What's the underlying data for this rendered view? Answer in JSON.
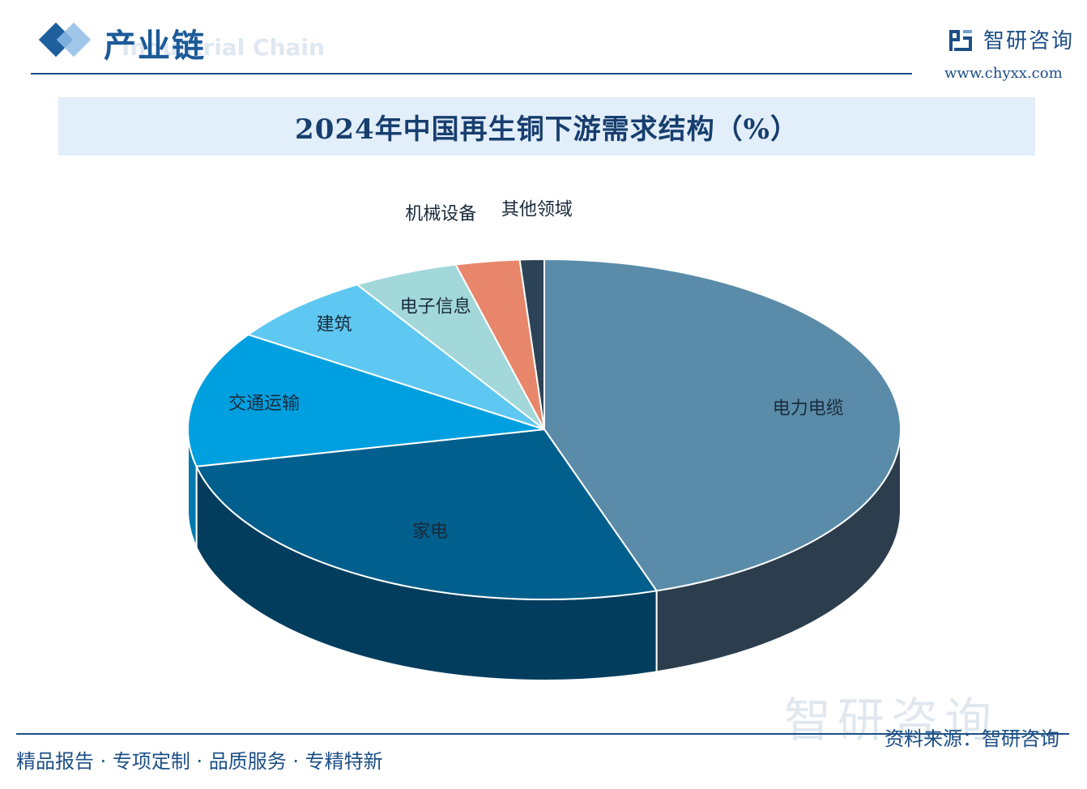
{
  "header": {
    "section_title": "产业链",
    "section_subtitle": "Industrial Chain",
    "brand_name": "智研咨询",
    "brand_url": "www.chyxx.com"
  },
  "chart_data": {
    "type": "pie",
    "title": "2024年中国再生铜下游需求结构（%）",
    "categories": [
      "电力电缆",
      "家电",
      "交通运输",
      "建筑",
      "电子信息",
      "机械设备",
      "其他领域"
    ],
    "values": [
      44.9,
      26.6,
      12.9,
      6.8,
      4.8,
      2.9,
      1.1
    ],
    "colors": [
      "#5a8ca9",
      "#005f8c",
      "#00a0e0",
      "#5ec8f2",
      "#a2d8da",
      "#e8866b",
      "#2c4256"
    ],
    "side_colors": [
      "#2c3e4e",
      "#023d5e",
      "#0078b0",
      "#3aa9d8",
      "#7bbdbf",
      "#c06a52",
      "#1a2a38"
    ],
    "label_color": "#1a2a3a",
    "unit": "%"
  },
  "footer": {
    "tagline": "精品报告 · 专项定制 · 品质服务 · 专精特新",
    "source": "资料来源：智研咨询",
    "watermark": "智研咨询"
  }
}
